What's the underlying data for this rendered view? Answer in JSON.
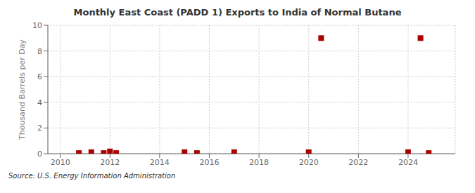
{
  "chart_data": {
    "type": "scatter",
    "title": "Monthly East Coast (PADD 1) Exports to India of Normal Butane",
    "ylabel": "Thousand Barrels per Day",
    "annotations": [
      "Source: U.S. Energy Information Administration"
    ],
    "x": [
      2010.75,
      2011.25,
      2011.75,
      2012.0,
      2012.25,
      2015.0,
      2015.5,
      2017.0,
      2020.0,
      2020.5,
      2024.0,
      2024.5,
      2024.83
    ],
    "values": [
      0.05,
      0.12,
      0.05,
      0.18,
      0.05,
      0.12,
      0.05,
      0.12,
      0.12,
      9.0,
      0.12,
      9.0,
      0.05
    ],
    "color": "#aa0000",
    "marker": "square",
    "xlim": [
      2009.5,
      2025.9
    ],
    "ylim": [
      0,
      10
    ],
    "xticks": [
      2010,
      2012,
      2014,
      2016,
      2018,
      2020,
      2022,
      2024
    ],
    "yticks": [
      0,
      2,
      4,
      6,
      8,
      10
    ],
    "grid": true
  }
}
